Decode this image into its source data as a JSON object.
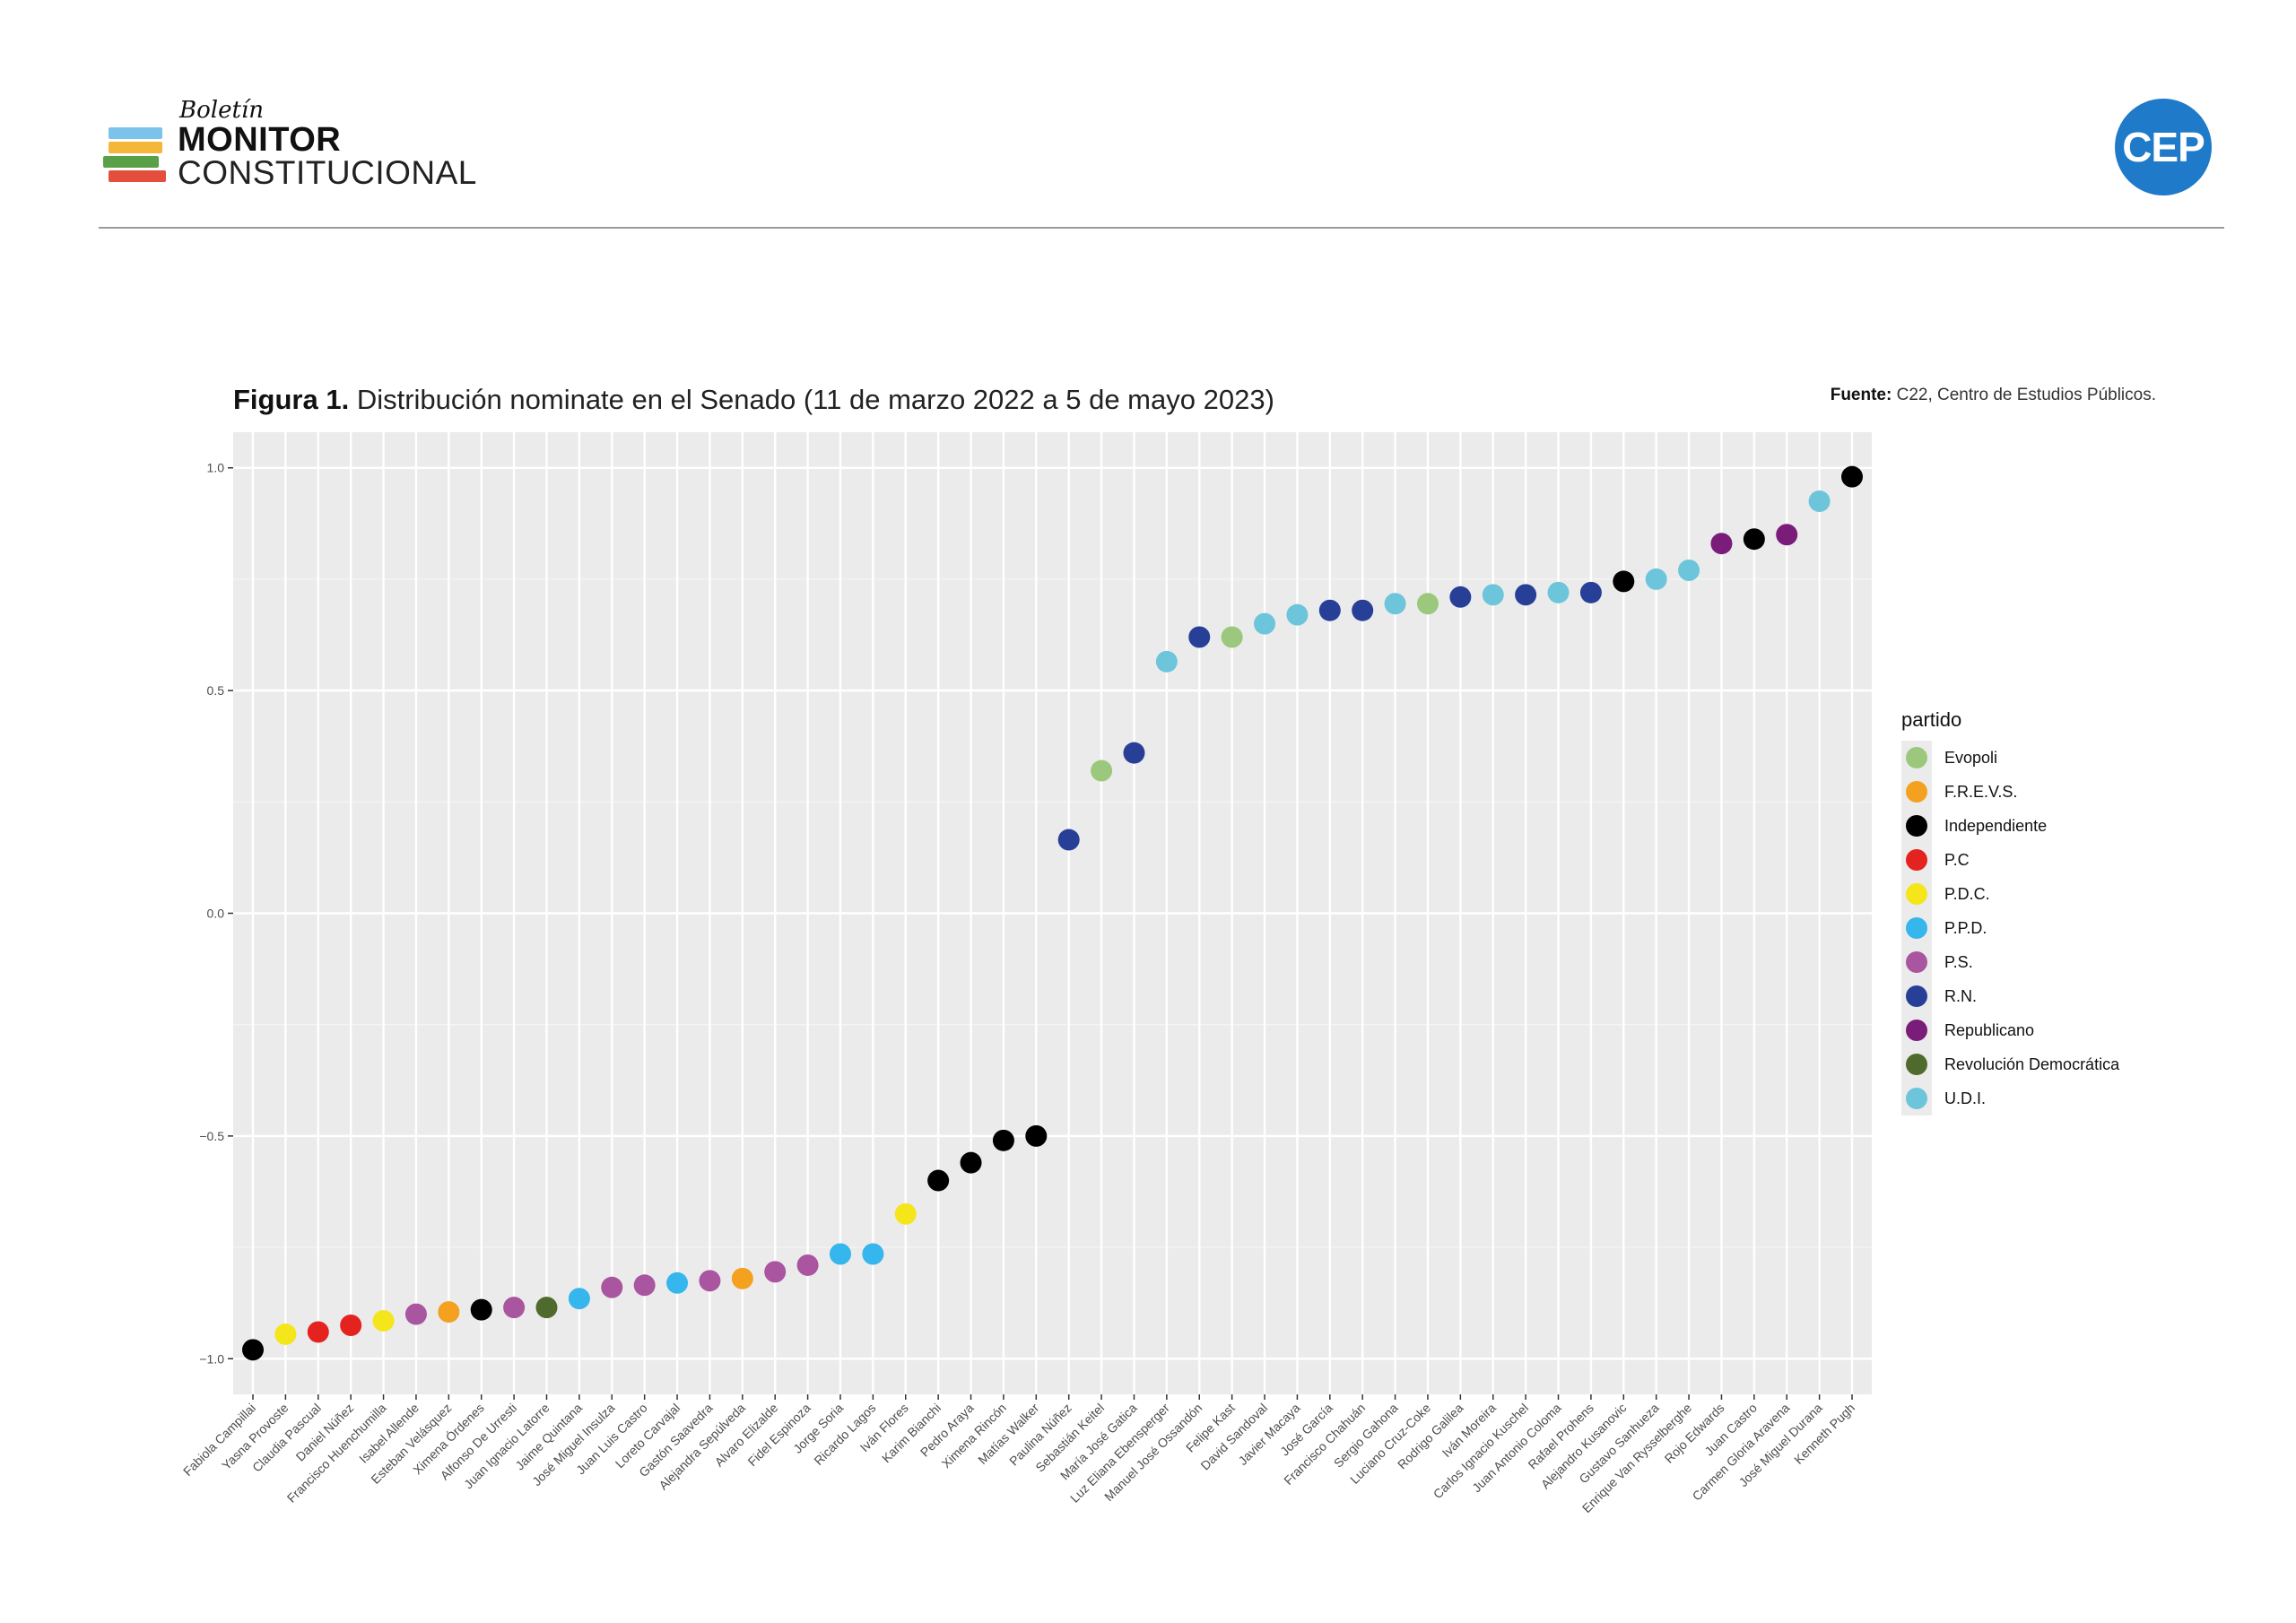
{
  "header": {
    "logo_small": "Boletín",
    "logo_big": "MONITOR",
    "logo_sub": "CONSTITUCIONAL",
    "logo_bar_colors": [
      "#7cc3ec",
      "#f4b73a",
      "#5aa046",
      "#e44e3c"
    ],
    "cep_logo": "CEP",
    "cep_color": "#1f7ac9"
  },
  "figure": {
    "title_bold": "Figura 1.",
    "title_rest": "Distribución nominate en el Senado (11 de marzo 2022 a 5 de mayo 2023)",
    "source_bold": "Fuente:",
    "source_rest": "C22, Centro de Estudios Públicos."
  },
  "legend": {
    "title": "partido",
    "items": [
      {
        "label": "Evopoli",
        "color": "#9cc87e"
      },
      {
        "label": "F.R.E.V.S.",
        "color": "#f3a11f"
      },
      {
        "label": "Independiente",
        "color": "#000000"
      },
      {
        "label": "P.C",
        "color": "#e42320"
      },
      {
        "label": "P.D.C.",
        "color": "#f5e51b"
      },
      {
        "label": "P.P.D.",
        "color": "#35b6ec"
      },
      {
        "label": "P.S.",
        "color": "#a9559f"
      },
      {
        "label": "R.N.",
        "color": "#273f97"
      },
      {
        "label": "Republicano",
        "color": "#7a1c79"
      },
      {
        "label": "Revolución Democrática",
        "color": "#4e6b2d"
      },
      {
        "label": "U.D.I.",
        "color": "#6cc5da"
      }
    ]
  },
  "chart_data": {
    "type": "scatter",
    "ylim": [
      -1.08,
      1.08
    ],
    "yticks": [
      -1.0,
      -0.5,
      0.0,
      0.5,
      1.0
    ],
    "ytick_labels": [
      "−1.0",
      "−0.5",
      "0.0",
      "0.5",
      "1.0"
    ],
    "grid": true,
    "legend_position": "right",
    "legend_title": "partido",
    "points": [
      {
        "name": "Fabiola Campillai",
        "party": "Independiente",
        "y": -0.98
      },
      {
        "name": "Yasna Provoste",
        "party": "P.D.C.",
        "y": -0.945
      },
      {
        "name": "Claudia Pascual",
        "party": "P.C",
        "y": -0.94
      },
      {
        "name": "Daniel Núñez",
        "party": "P.C",
        "y": -0.925
      },
      {
        "name": "Francisco Huenchumilla",
        "party": "P.D.C.",
        "y": -0.915
      },
      {
        "name": "Isabel Allende",
        "party": "P.S.",
        "y": -0.9
      },
      {
        "name": "Esteban Velásquez",
        "party": "F.R.E.V.S.",
        "y": -0.895
      },
      {
        "name": "Ximena Órdenes",
        "party": "Independiente",
        "y": -0.89
      },
      {
        "name": "Alfonso De Urresti",
        "party": "P.S.",
        "y": -0.885
      },
      {
        "name": "Juan Ignacio Latorre",
        "party": "Revolución Democrática",
        "y": -0.885
      },
      {
        "name": "Jaime Quintana",
        "party": "P.P.D.",
        "y": -0.865
      },
      {
        "name": "José Miguel Insulza",
        "party": "P.S.",
        "y": -0.84
      },
      {
        "name": "Juan Luis Castro",
        "party": "P.S.",
        "y": -0.835
      },
      {
        "name": "Loreto Carvajal",
        "party": "P.P.D.",
        "y": -0.83
      },
      {
        "name": "Gastón Saavedra",
        "party": "P.S.",
        "y": -0.825
      },
      {
        "name": "Alejandra Sepúlveda",
        "party": "F.R.E.V.S.",
        "y": -0.82
      },
      {
        "name": "Alvaro Elizalde",
        "party": "P.S.",
        "y": -0.805
      },
      {
        "name": "Fidel Espinoza",
        "party": "P.S.",
        "y": -0.79
      },
      {
        "name": "Jorge Soria",
        "party": "P.P.D.",
        "y": -0.765
      },
      {
        "name": "Ricardo Lagos",
        "party": "P.P.D.",
        "y": -0.765
      },
      {
        "name": "Iván Flores",
        "party": "P.D.C.",
        "y": -0.675
      },
      {
        "name": "Karim Bianchi",
        "party": "Independiente",
        "y": -0.6
      },
      {
        "name": "Pedro Araya",
        "party": "Independiente",
        "y": -0.56
      },
      {
        "name": "Ximena Rincón",
        "party": "Independiente",
        "y": -0.51
      },
      {
        "name": "Matías Walker",
        "party": "Independiente",
        "y": -0.5
      },
      {
        "name": "Paulina Núñez",
        "party": "R.N.",
        "y": 0.165
      },
      {
        "name": "Sebastián Keitel",
        "party": "Evopoli",
        "y": 0.32
      },
      {
        "name": "María José Gatica",
        "party": "R.N.",
        "y": 0.36
      },
      {
        "name": "Luz Eliana Ebensperger",
        "party": "U.D.I.",
        "y": 0.565
      },
      {
        "name": "Manuel José Ossandón",
        "party": "R.N.",
        "y": 0.62
      },
      {
        "name": "Felipe Kast",
        "party": "Evopoli",
        "y": 0.62
      },
      {
        "name": "David Sandoval",
        "party": "U.D.I.",
        "y": 0.65
      },
      {
        "name": "Javier Macaya",
        "party": "U.D.I.",
        "y": 0.67
      },
      {
        "name": "José García",
        "party": "R.N.",
        "y": 0.68
      },
      {
        "name": "Francisco Chahuán",
        "party": "R.N.",
        "y": 0.68
      },
      {
        "name": "Sergio Gahona",
        "party": "U.D.I.",
        "y": 0.695
      },
      {
        "name": "Luciano Cruz-Coke",
        "party": "Evopoli",
        "y": 0.695
      },
      {
        "name": "Rodrigo Galilea",
        "party": "R.N.",
        "y": 0.71
      },
      {
        "name": "Iván Moreira",
        "party": "U.D.I.",
        "y": 0.715
      },
      {
        "name": "Carlos Ignacio Kuschel",
        "party": "R.N.",
        "y": 0.715
      },
      {
        "name": "Juan Antonio Coloma",
        "party": "U.D.I.",
        "y": 0.72
      },
      {
        "name": "Rafael Prohens",
        "party": "R.N.",
        "y": 0.72
      },
      {
        "name": "Alejandro Kusanovic",
        "party": "Independiente",
        "y": 0.745
      },
      {
        "name": "Gustavo Sanhueza",
        "party": "U.D.I.",
        "y": 0.75
      },
      {
        "name": "Enrique Van Rysselberghe",
        "party": "U.D.I.",
        "y": 0.77
      },
      {
        "name": "Rojo Edwards",
        "party": "Republicano",
        "y": 0.83
      },
      {
        "name": "Juan Castro",
        "party": "Independiente",
        "y": 0.84
      },
      {
        "name": "Carmen Gloria Aravena",
        "party": "Republicano",
        "y": 0.85
      },
      {
        "name": "José Miguel Durana",
        "party": "U.D.I.",
        "y": 0.925
      },
      {
        "name": "Kenneth Pugh",
        "party": "Independiente",
        "y": 0.98
      }
    ]
  }
}
